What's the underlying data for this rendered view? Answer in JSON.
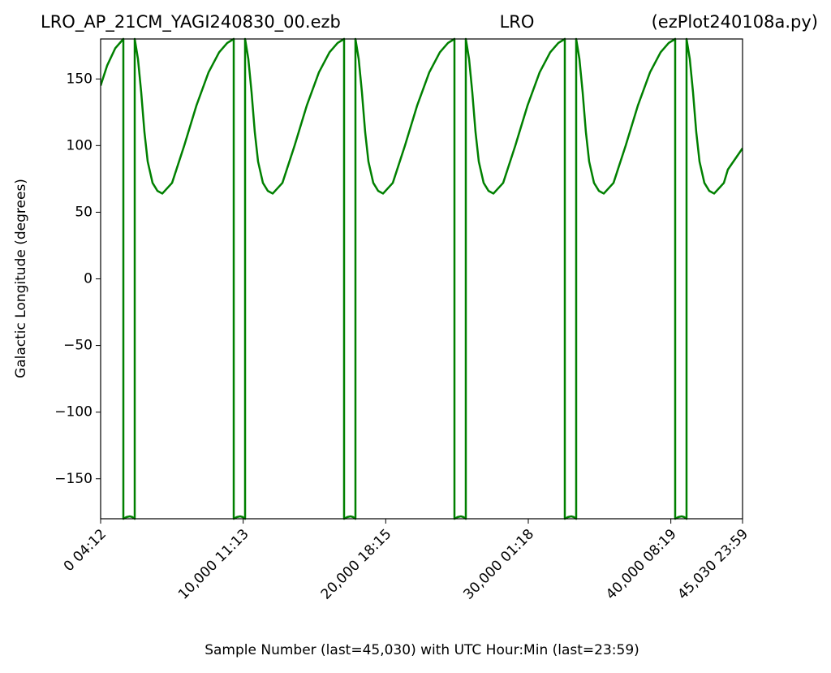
{
  "chart_data": {
    "type": "line",
    "title_left": "LRO_AP_21CM_YAGI240830_00.ezb",
    "title_center": "LRO",
    "title_right": "(ezPlot240108a.py)",
    "x_label": "Sample Number (last=45,030) with UTC Hour:Min (last=23:59)",
    "y_label": "Galactic Longitude (degrees)",
    "xlim": [
      0,
      45030
    ],
    "ylim": [
      -180,
      180
    ],
    "xticks": [
      {
        "value": 0,
        "label": "0  04:12"
      },
      {
        "value": 10000,
        "label": "10,000  11:13"
      },
      {
        "value": 20000,
        "label": "20,000  18:15"
      },
      {
        "value": 30000,
        "label": "30,000  01:18"
      },
      {
        "value": 40000,
        "label": "40,000  08:19"
      },
      {
        "value": 45030,
        "label": "45,030  23:59"
      }
    ],
    "yticks": [
      {
        "value": -150,
        "label": "−150"
      },
      {
        "value": -100,
        "label": "−100"
      },
      {
        "value": -50,
        "label": "−50"
      },
      0,
      50,
      100,
      150
    ],
    "grid": false,
    "x": [
      0,
      455,
      1025,
      1594,
      1594,
      1822,
      2049,
      2220,
      2391,
      2391,
      2619,
      2846,
      3074,
      3302,
      3643,
      3985,
      4327,
      5010,
      5864,
      6718,
      7572,
      8312,
      8881,
      9336,
      9336,
      9564,
      9791,
      9962,
      10133,
      10133,
      10361,
      10588,
      10816,
      11044,
      11385,
      11727,
      12069,
      12752,
      13606,
      14460,
      15314,
      16054,
      16623,
      17078,
      17078,
      17306,
      17533,
      17704,
      17875,
      17875,
      18103,
      18330,
      18558,
      18786,
      19127,
      19469,
      19811,
      20494,
      21348,
      22202,
      23056,
      23796,
      24365,
      24820,
      24820,
      25048,
      25275,
      25446,
      25617,
      25617,
      25845,
      26072,
      26300,
      26528,
      26869,
      27211,
      27553,
      28236,
      29090,
      29944,
      30798,
      31538,
      32107,
      32562,
      32562,
      32790,
      33017,
      33188,
      33359,
      33359,
      33587,
      33814,
      34042,
      34270,
      34611,
      34953,
      35295,
      35978,
      36832,
      37686,
      38540,
      39280,
      39849,
      40304,
      40304,
      40532,
      40759,
      40930,
      41101,
      41101,
      41329,
      41556,
      41784,
      42012,
      42353,
      42695,
      43037,
      43720,
      44000,
      45030
    ],
    "series": [
      {
        "name": "Galactic Longitude",
        "color": "#008000",
        "values": [
          145,
          160,
          173,
          180,
          -180,
          -178.7,
          -178.2,
          -178.7,
          -180,
          180,
          165,
          140,
          110,
          88,
          72,
          66,
          64,
          72,
          100,
          130,
          155,
          170,
          177,
          180,
          -180,
          -178.7,
          -178.2,
          -178.7,
          -180,
          180,
          165,
          140,
          110,
          88,
          72,
          66,
          64,
          72,
          100,
          130,
          155,
          170,
          177,
          180,
          -180,
          -178.7,
          -178.2,
          -178.7,
          -180,
          180,
          165,
          140,
          110,
          88,
          72,
          66,
          64,
          72,
          100,
          130,
          155,
          170,
          177,
          180,
          -180,
          -178.7,
          -178.2,
          -178.7,
          -180,
          180,
          165,
          140,
          110,
          88,
          72,
          66,
          64,
          72,
          100,
          130,
          155,
          170,
          177,
          180,
          -180,
          -178.7,
          -178.2,
          -178.7,
          -180,
          180,
          165,
          140,
          110,
          88,
          72,
          66,
          64,
          72,
          100,
          130,
          155,
          170,
          177,
          180,
          -180,
          -178.7,
          -178.2,
          -178.7,
          -180,
          180,
          165,
          140,
          110,
          88,
          72,
          66,
          64,
          72,
          82,
          98
        ]
      }
    ]
  }
}
